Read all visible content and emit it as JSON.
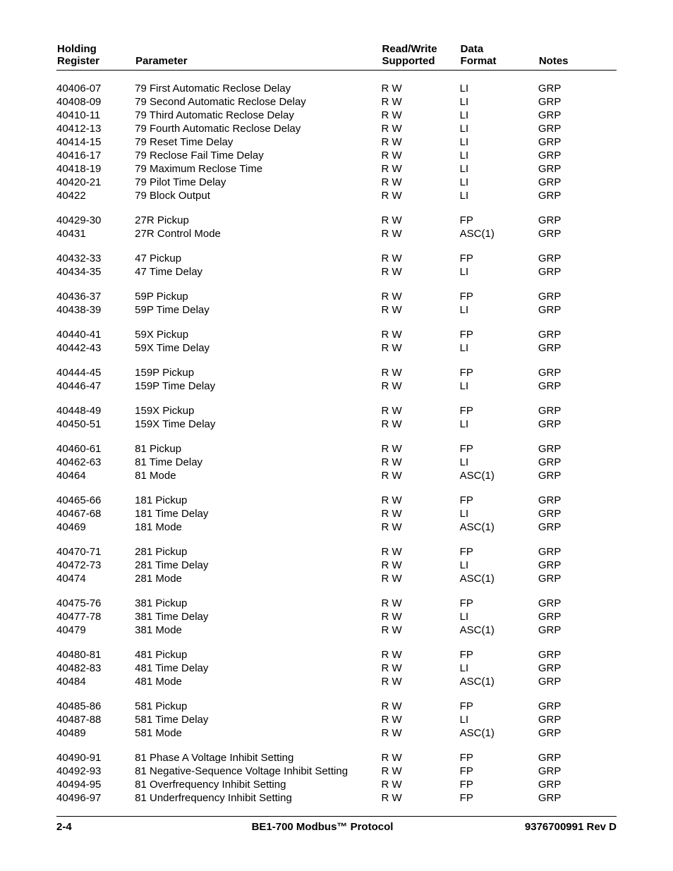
{
  "headers": {
    "register_l1": "Holding",
    "register_l2": "Register",
    "parameter": "Parameter",
    "rw_l1": "Read/Write",
    "rw_l2": "Supported",
    "fmt_l1": "Data",
    "fmt_l2": "Format",
    "notes": "Notes"
  },
  "groups": [
    [
      {
        "reg": "40406-07",
        "param": "79 First Automatic Reclose Delay",
        "rw": "R W",
        "fmt": "LI",
        "notes": "GRP"
      },
      {
        "reg": "40408-09",
        "param": "79 Second Automatic Reclose Delay",
        "rw": "R W",
        "fmt": "LI",
        "notes": "GRP"
      },
      {
        "reg": "40410-11",
        "param": "79 Third Automatic Reclose Delay",
        "rw": "R W",
        "fmt": "LI",
        "notes": "GRP"
      },
      {
        "reg": "40412-13",
        "param": "79 Fourth Automatic Reclose Delay",
        "rw": "R W",
        "fmt": "LI",
        "notes": "GRP"
      },
      {
        "reg": "40414-15",
        "param": "79 Reset Time Delay",
        "rw": "R W",
        "fmt": "LI",
        "notes": "GRP"
      },
      {
        "reg": "40416-17",
        "param": "79 Reclose Fail Time Delay",
        "rw": "R W",
        "fmt": "LI",
        "notes": "GRP"
      },
      {
        "reg": "40418-19",
        "param": "79 Maximum Reclose Time",
        "rw": "R W",
        "fmt": "LI",
        "notes": "GRP"
      },
      {
        "reg": "40420-21",
        "param": "79 Pilot Time Delay",
        "rw": "R W",
        "fmt": "LI",
        "notes": "GRP"
      },
      {
        "reg": "40422",
        "param": "79 Block Output",
        "rw": "R W",
        "fmt": "LI",
        "notes": "GRP"
      }
    ],
    [
      {
        "reg": "40429-30",
        "param": "27R Pickup",
        "rw": "R W",
        "fmt": "FP",
        "notes": "GRP"
      },
      {
        "reg": "40431",
        "param": "27R Control Mode",
        "rw": "R W",
        "fmt": "ASC(1)",
        "notes": "GRP"
      }
    ],
    [
      {
        "reg": "40432-33",
        "param": "47 Pickup",
        "rw": "R W",
        "fmt": "FP",
        "notes": "GRP"
      },
      {
        "reg": "40434-35",
        "param": "47 Time Delay",
        "rw": "R W",
        "fmt": "LI",
        "notes": "GRP"
      }
    ],
    [
      {
        "reg": "40436-37",
        "param": "59P Pickup",
        "rw": "R W",
        "fmt": "FP",
        "notes": "GRP"
      },
      {
        "reg": "40438-39",
        "param": "59P Time Delay",
        "rw": "R W",
        "fmt": "LI",
        "notes": "GRP"
      }
    ],
    [
      {
        "reg": "40440-41",
        "param": "59X Pickup",
        "rw": "R W",
        "fmt": "FP",
        "notes": "GRP"
      },
      {
        "reg": "40442-43",
        "param": "59X Time Delay",
        "rw": "R W",
        "fmt": "LI",
        "notes": "GRP"
      }
    ],
    [
      {
        "reg": "40444-45",
        "param": "159P Pickup",
        "rw": "R W",
        "fmt": "FP",
        "notes": "GRP"
      },
      {
        "reg": "40446-47",
        "param": "159P Time Delay",
        "rw": "R W",
        "fmt": "LI",
        "notes": "GRP"
      }
    ],
    [
      {
        "reg": "40448-49",
        "param": "159X Pickup",
        "rw": "R W",
        "fmt": "FP",
        "notes": "GRP"
      },
      {
        "reg": "40450-51",
        "param": "159X Time Delay",
        "rw": "R W",
        "fmt": "LI",
        "notes": "GRP"
      }
    ],
    [
      {
        "reg": "40460-61",
        "param": "81 Pickup",
        "rw": "R W",
        "fmt": "FP",
        "notes": "GRP"
      },
      {
        "reg": "40462-63",
        "param": "81 Time Delay",
        "rw": "R W",
        "fmt": "LI",
        "notes": "GRP"
      },
      {
        "reg": "40464",
        "param": "81 Mode",
        "rw": "R W",
        "fmt": "ASC(1)",
        "notes": "GRP"
      }
    ],
    [
      {
        "reg": "40465-66",
        "param": "181 Pickup",
        "rw": "R W",
        "fmt": "FP",
        "notes": "GRP"
      },
      {
        "reg": "40467-68",
        "param": "181 Time Delay",
        "rw": "R W",
        "fmt": "LI",
        "notes": "GRP"
      },
      {
        "reg": "40469",
        "param": "181 Mode",
        "rw": "R W",
        "fmt": "ASC(1)",
        "notes": "GRP"
      }
    ],
    [
      {
        "reg": "40470-71",
        "param": "281 Pickup",
        "rw": "R W",
        "fmt": "FP",
        "notes": "GRP"
      },
      {
        "reg": "40472-73",
        "param": "281 Time Delay",
        "rw": "R W",
        "fmt": "LI",
        "notes": "GRP"
      },
      {
        "reg": "40474",
        "param": "281 Mode",
        "rw": "R W",
        "fmt": "ASC(1)",
        "notes": "GRP"
      }
    ],
    [
      {
        "reg": "40475-76",
        "param": "381 Pickup",
        "rw": "R W",
        "fmt": "FP",
        "notes": "GRP"
      },
      {
        "reg": "40477-78",
        "param": "381 Time Delay",
        "rw": "R W",
        "fmt": "LI",
        "notes": "GRP"
      },
      {
        "reg": "40479",
        "param": "381 Mode",
        "rw": "R W",
        "fmt": "ASC(1)",
        "notes": "GRP"
      }
    ],
    [
      {
        "reg": "40480-81",
        "param": "481 Pickup",
        "rw": "R W",
        "fmt": "FP",
        "notes": "GRP"
      },
      {
        "reg": "40482-83",
        "param": "481 Time Delay",
        "rw": "R W",
        "fmt": "LI",
        "notes": "GRP"
      },
      {
        "reg": "40484",
        "param": "481 Mode",
        "rw": "R W",
        "fmt": "ASC(1)",
        "notes": "GRP"
      }
    ],
    [
      {
        "reg": "40485-86",
        "param": "581 Pickup",
        "rw": "R W",
        "fmt": "FP",
        "notes": "GRP"
      },
      {
        "reg": "40487-88",
        "param": "581 Time Delay",
        "rw": "R W",
        "fmt": "LI",
        "notes": "GRP"
      },
      {
        "reg": "40489",
        "param": "581 Mode",
        "rw": "R W",
        "fmt": "ASC(1)",
        "notes": "GRP"
      }
    ],
    [
      {
        "reg": "40490-91",
        "param": "81 Phase A Voltage Inhibit Setting",
        "rw": "R W",
        "fmt": "FP",
        "notes": "GRP"
      },
      {
        "reg": "40492-93",
        "param": "81 Negative-Sequence Voltage Inhibit Setting",
        "rw": "R W",
        "fmt": "FP",
        "notes": "GRP"
      },
      {
        "reg": "40494-95",
        "param": "81 Overfrequency Inhibit Setting",
        "rw": "R W",
        "fmt": "FP",
        "notes": "GRP"
      },
      {
        "reg": "40496-97",
        "param": "81 Underfrequency Inhibit Setting",
        "rw": "R W",
        "fmt": "FP",
        "notes": "GRP"
      }
    ]
  ],
  "footer": {
    "left": "2-4",
    "center": "BE1-700 Modbus™ Protocol",
    "right": "9376700991 Rev D"
  }
}
